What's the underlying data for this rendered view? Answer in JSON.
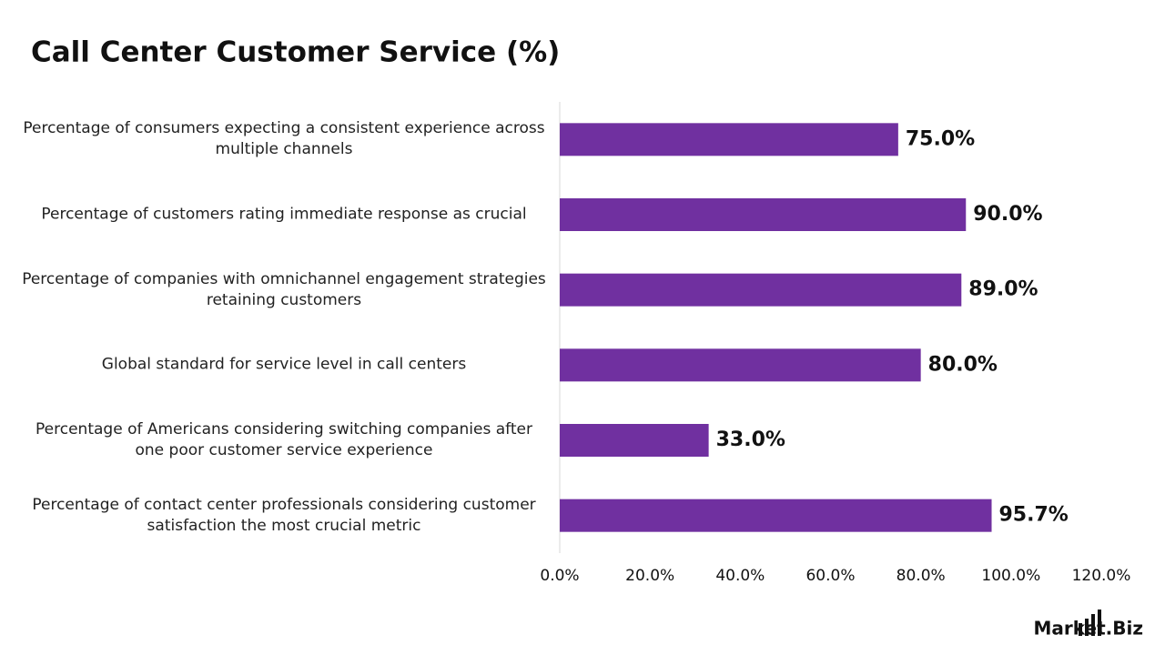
{
  "chart_data": {
    "type": "bar",
    "orientation": "horizontal",
    "title": "Call Center Customer Service (%)",
    "categories": [
      "Percentage of consumers expecting a consistent experience across multiple channels",
      "Percentage of customers rating immediate response as crucial",
      "Percentage of companies with omnichannel engagement strategies retaining customers",
      "Global standard for service level in call centers",
      "Percentage of Americans considering switching companies after one poor customer service experience",
      "Percentage of contact center professionals considering customer satisfaction the most crucial metric"
    ],
    "values": [
      75.0,
      90.0,
      89.0,
      80.0,
      33.0,
      95.7
    ],
    "value_labels": [
      "75.0%",
      "90.0%",
      "89.0%",
      "80.0%",
      "33.0%",
      "95.7%"
    ],
    "color": "#7030a0",
    "xlim": [
      0,
      120
    ],
    "xticks": [
      {
        "value": 0,
        "label": "0.0%"
      },
      {
        "value": 20,
        "label": "20.0%"
      },
      {
        "value": 40,
        "label": "40.0%"
      },
      {
        "value": 60,
        "label": "60.0%"
      },
      {
        "value": 80,
        "label": "80.0%"
      },
      {
        "value": 100,
        "label": "100.0%"
      },
      {
        "value": 120,
        "label": "120.0%"
      }
    ],
    "grid": false,
    "brand": "Market.Biz"
  }
}
